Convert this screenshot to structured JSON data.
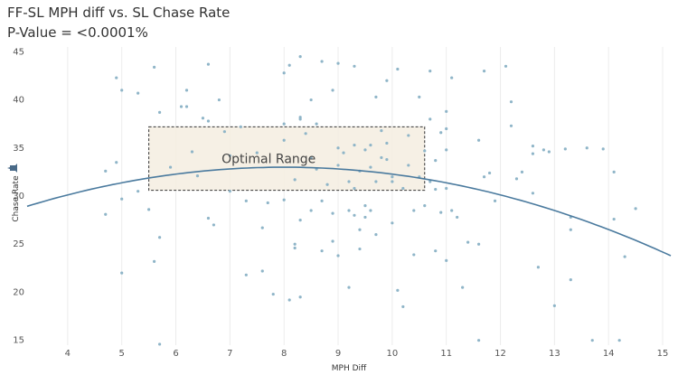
{
  "chart_data": {
    "type": "scatter",
    "title": "FF-SL MPH diff vs. SL Chase Rate",
    "subtitle": "P-Value = <0.0001%",
    "xlabel": "MPH Diff",
    "ylabel": "Chase Rate",
    "xlim": [
      3.25,
      15.15
    ],
    "ylim": [
      14.5,
      45.5
    ],
    "x_ticks": [
      4,
      5,
      6,
      7,
      8,
      9,
      10,
      11,
      12,
      13,
      14,
      15
    ],
    "y_ticks": [
      15,
      20,
      25,
      30,
      35,
      40,
      45
    ],
    "grid": "vertical lines only",
    "colors": {
      "points": "#8fb5c8",
      "trend": "#4a7a9e",
      "box_fill": "#f5ede0",
      "box_border": "#333333"
    },
    "trendline": {
      "type": "quadratic",
      "coefficients": {
        "a": -0.18,
        "b": 2.88,
        "c": 21.48
      },
      "peak": [
        8.0,
        33.0
      ]
    },
    "annotation": {
      "label": "Optimal Range",
      "x_range": [
        5.5,
        10.6
      ],
      "y_range": [
        30.6,
        37.2
      ]
    },
    "points": [
      [
        4.7,
        32.6
      ],
      [
        4.7,
        28.1
      ],
      [
        4.9,
        42.3
      ],
      [
        4.9,
        33.5
      ],
      [
        5.0,
        41.0
      ],
      [
        5.0,
        22.0
      ],
      [
        5.0,
        29.7
      ],
      [
        5.3,
        30.5
      ],
      [
        5.3,
        40.7
      ],
      [
        5.5,
        28.6
      ],
      [
        5.6,
        43.4
      ],
      [
        5.6,
        23.2
      ],
      [
        5.7,
        38.7
      ],
      [
        5.7,
        25.7
      ],
      [
        5.7,
        14.6
      ],
      [
        5.9,
        33.0
      ],
      [
        6.1,
        39.3
      ],
      [
        6.2,
        41.0
      ],
      [
        6.2,
        39.3
      ],
      [
        6.3,
        34.6
      ],
      [
        6.4,
        32.1
      ],
      [
        6.5,
        38.1
      ],
      [
        6.6,
        43.7
      ],
      [
        6.6,
        37.8
      ],
      [
        6.6,
        27.7
      ],
      [
        6.7,
        27.0
      ],
      [
        6.8,
        40.0
      ],
      [
        6.9,
        36.7
      ],
      [
        7.0,
        34.2
      ],
      [
        7.0,
        30.5
      ],
      [
        7.2,
        37.2
      ],
      [
        7.3,
        29.5
      ],
      [
        7.3,
        21.8
      ],
      [
        7.5,
        34.5
      ],
      [
        7.6,
        26.7
      ],
      [
        7.6,
        22.2
      ],
      [
        7.7,
        29.3
      ],
      [
        7.8,
        19.8
      ],
      [
        8.0,
        42.8
      ],
      [
        8.0,
        37.5
      ],
      [
        8.0,
        35.8
      ],
      [
        8.0,
        29.6
      ],
      [
        8.1,
        19.2
      ],
      [
        8.1,
        43.6
      ],
      [
        8.2,
        25.0
      ],
      [
        8.2,
        24.6
      ],
      [
        8.2,
        31.7
      ],
      [
        8.3,
        44.5
      ],
      [
        8.3,
        38.2
      ],
      [
        8.3,
        38.0
      ],
      [
        8.3,
        27.5
      ],
      [
        8.3,
        19.5
      ],
      [
        8.4,
        36.5
      ],
      [
        8.5,
        40.0
      ],
      [
        8.5,
        28.5
      ],
      [
        8.5,
        34.0
      ],
      [
        8.6,
        37.5
      ],
      [
        8.6,
        32.8
      ],
      [
        8.7,
        24.3
      ],
      [
        8.7,
        29.5
      ],
      [
        8.7,
        44.0
      ],
      [
        8.8,
        31.2
      ],
      [
        8.9,
        28.2
      ],
      [
        8.9,
        41.0
      ],
      [
        8.9,
        25.3
      ],
      [
        9.0,
        33.2
      ],
      [
        9.0,
        35.0
      ],
      [
        9.0,
        43.8
      ],
      [
        9.0,
        23.8
      ],
      [
        9.1,
        34.5
      ],
      [
        9.2,
        31.5
      ],
      [
        9.2,
        20.5
      ],
      [
        9.2,
        28.5
      ],
      [
        9.3,
        43.5
      ],
      [
        9.3,
        35.3
      ],
      [
        9.3,
        30.8
      ],
      [
        9.3,
        28.0
      ],
      [
        9.4,
        32.6
      ],
      [
        9.4,
        26.5
      ],
      [
        9.4,
        24.5
      ],
      [
        9.5,
        34.8
      ],
      [
        9.5,
        29.0
      ],
      [
        9.5,
        27.8
      ],
      [
        9.6,
        35.3
      ],
      [
        9.6,
        33.0
      ],
      [
        9.6,
        28.5
      ],
      [
        9.7,
        40.3
      ],
      [
        9.7,
        26.0
      ],
      [
        9.7,
        31.5
      ],
      [
        9.8,
        36.8
      ],
      [
        9.8,
        34.0
      ],
      [
        9.9,
        35.5
      ],
      [
        9.9,
        42.0
      ],
      [
        9.9,
        33.8
      ],
      [
        10.0,
        27.2
      ],
      [
        10.0,
        32.0
      ],
      [
        10.0,
        31.5
      ],
      [
        10.1,
        43.2
      ],
      [
        10.1,
        20.2
      ],
      [
        10.2,
        30.8
      ],
      [
        10.2,
        18.5
      ],
      [
        10.3,
        36.3
      ],
      [
        10.3,
        33.2
      ],
      [
        10.4,
        28.5
      ],
      [
        10.4,
        23.9
      ],
      [
        10.5,
        40.3
      ],
      [
        10.5,
        32.0
      ],
      [
        10.6,
        34.7
      ],
      [
        10.6,
        29.0
      ],
      [
        10.7,
        38.0
      ],
      [
        10.7,
        43.0
      ],
      [
        10.7,
        31.5
      ],
      [
        10.8,
        33.7
      ],
      [
        10.8,
        30.7
      ],
      [
        10.8,
        24.3
      ],
      [
        10.9,
        36.6
      ],
      [
        10.9,
        28.3
      ],
      [
        11.0,
        38.8
      ],
      [
        11.0,
        37.0
      ],
      [
        11.0,
        34.8
      ],
      [
        11.0,
        30.8
      ],
      [
        11.0,
        23.3
      ],
      [
        11.1,
        42.3
      ],
      [
        11.1,
        28.5
      ],
      [
        11.2,
        27.8
      ],
      [
        11.3,
        20.5
      ],
      [
        11.4,
        25.2
      ],
      [
        11.6,
        35.8
      ],
      [
        11.6,
        25.0
      ],
      [
        11.6,
        15.0
      ],
      [
        11.7,
        43.0
      ],
      [
        11.7,
        32.0
      ],
      [
        11.8,
        32.4
      ],
      [
        11.9,
        29.5
      ],
      [
        12.1,
        43.5
      ],
      [
        12.2,
        39.8
      ],
      [
        12.2,
        37.3
      ],
      [
        12.3,
        31.8
      ],
      [
        12.4,
        32.5
      ],
      [
        12.6,
        35.2
      ],
      [
        12.6,
        34.4
      ],
      [
        12.6,
        30.3
      ],
      [
        12.7,
        22.6
      ],
      [
        12.8,
        34.8
      ],
      [
        12.9,
        34.6
      ],
      [
        13.0,
        18.6
      ],
      [
        13.2,
        34.9
      ],
      [
        13.3,
        27.8
      ],
      [
        13.3,
        26.5
      ],
      [
        13.3,
        21.3
      ],
      [
        13.6,
        35.0
      ],
      [
        13.7,
        15.0
      ],
      [
        13.9,
        34.9
      ],
      [
        14.1,
        32.5
      ],
      [
        14.1,
        27.6
      ],
      [
        14.2,
        15.0
      ],
      [
        14.3,
        23.7
      ],
      [
        14.5,
        28.7
      ]
    ]
  }
}
